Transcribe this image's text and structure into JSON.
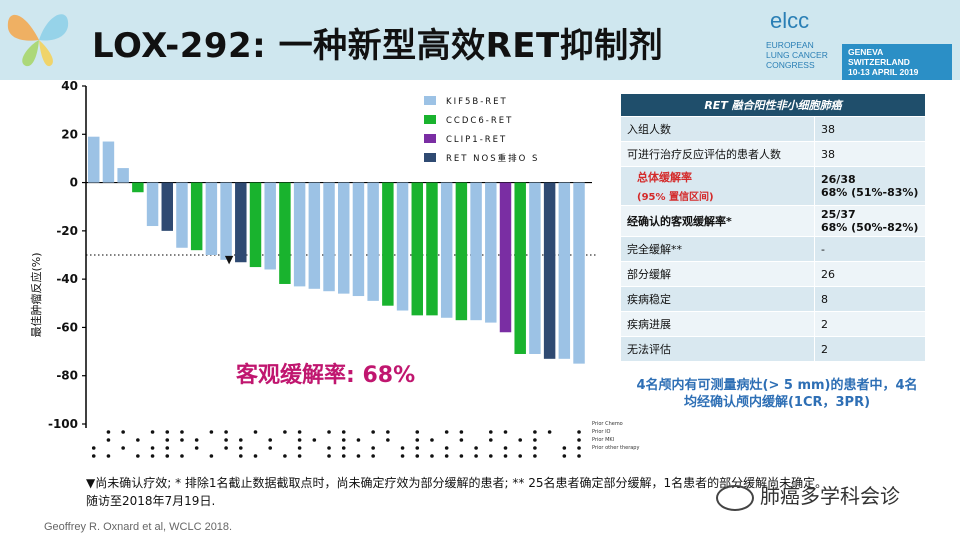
{
  "header": {
    "title": "LOX-292: 一种新型高效RET抑制剂",
    "logo": {
      "name": "elcc",
      "line1": "EUROPEAN",
      "line2": "LUNG CANCER",
      "line3": "CONGRESS",
      "badge_line1": "GENEVA SWITZERLAND",
      "badge_line2": "10-13 APRIL 2019"
    }
  },
  "chart_data": {
    "type": "bar",
    "ylabel": "最佳肿瘤反应(%)",
    "ylim": [
      -100,
      40
    ],
    "yticks": [
      "40",
      "20",
      "0",
      "-20",
      "-40",
      "-60",
      "-80",
      "-100"
    ],
    "threshold": -30,
    "legend": [
      "KIF5B-RET",
      "CCDC6-RET",
      "CLIP1-RET",
      "RET NOS重排O S"
    ],
    "colors": {
      "KIF5B-RET": "#9cc2e5",
      "CCDC6-RET": "#19b32e",
      "CLIP1-RET": "#7a2ea3",
      "RET NOS重排O S": "#2f4a72"
    },
    "values": [
      19,
      17,
      6,
      -4,
      -18,
      -20,
      -27,
      -28,
      -30,
      -32,
      -33,
      -35,
      -36,
      -42,
      -43,
      -44,
      -45,
      -46,
      -47,
      -49,
      -51,
      -53,
      -55,
      -55,
      -56,
      -57,
      -57,
      -58,
      -62,
      -71,
      -71,
      -73,
      -73,
      -75
    ],
    "series": [
      "KIF5B-RET",
      "KIF5B-RET",
      "KIF5B-RET",
      "CCDC6-RET",
      "KIF5B-RET",
      "RET NOS重排O S",
      "KIF5B-RET",
      "CCDC6-RET",
      "KIF5B-RET",
      "KIF5B-RET",
      "RET NOS重排O S",
      "CCDC6-RET",
      "KIF5B-RET",
      "CCDC6-RET",
      "KIF5B-RET",
      "KIF5B-RET",
      "KIF5B-RET",
      "KIF5B-RET",
      "KIF5B-RET",
      "KIF5B-RET",
      "CCDC6-RET",
      "KIF5B-RET",
      "CCDC6-RET",
      "CCDC6-RET",
      "KIF5B-RET",
      "CCDC6-RET",
      "KIF5B-RET",
      "KIF5B-RET",
      "CLIP1-RET",
      "CCDC6-RET",
      "KIF5B-RET",
      "RET NOS重排O S",
      "KIF5B-RET",
      "KIF5B-RET"
    ],
    "annotation": "客观缓解率: 68%",
    "marker": "▼",
    "prior_therapy_labels": [
      "Prior Chemo",
      "Prior IO",
      "Prior MKI",
      "Prior other therapy"
    ],
    "prior_therapy": [
      [
        0,
        1,
        1,
        0,
        1,
        1,
        1,
        0,
        1,
        1,
        0,
        1,
        0,
        1,
        1,
        0,
        1,
        1,
        0,
        1,
        1,
        0,
        1,
        0,
        1,
        1,
        0,
        1,
        1,
        0,
        1,
        1,
        0,
        1
      ],
      [
        0,
        1,
        0,
        1,
        0,
        1,
        1,
        1,
        0,
        1,
        1,
        0,
        1,
        0,
        1,
        1,
        0,
        1,
        1,
        0,
        1,
        0,
        1,
        1,
        0,
        1,
        0,
        1,
        0,
        1,
        1,
        0,
        0,
        1
      ],
      [
        1,
        0,
        1,
        0,
        1,
        1,
        0,
        1,
        0,
        1,
        1,
        0,
        1,
        0,
        1,
        0,
        1,
        1,
        0,
        1,
        0,
        1,
        1,
        0,
        1,
        0,
        1,
        0,
        1,
        0,
        1,
        0,
        1,
        1
      ],
      [
        1,
        1,
        0,
        1,
        1,
        1,
        1,
        0,
        1,
        0,
        1,
        1,
        0,
        1,
        1,
        0,
        1,
        1,
        1,
        1,
        0,
        1,
        1,
        1,
        1,
        1,
        1,
        1,
        1,
        1,
        1,
        0,
        1,
        1
      ]
    ]
  },
  "table": {
    "header": "RET 融合阳性非小细胞肺癌",
    "rows": [
      {
        "label": "入组人数",
        "value": "38"
      },
      {
        "label": "可进行治疗反应评估的患者人数",
        "value": "38"
      },
      {
        "label": "总体缓解率",
        "sublabel": "(95% 置信区间)",
        "value": "26/38",
        "value2": "68% (51%-83%)"
      },
      {
        "label": "经确认的客观缓解率*",
        "value": "25/37",
        "value2": "68% (50%-82%)"
      },
      {
        "label": "完全缓解**",
        "value": "-"
      },
      {
        "label": "部分缓解",
        "value": "26"
      },
      {
        "label": "疾病稳定",
        "value": "8"
      },
      {
        "label": "疾病进展",
        "value": "2"
      },
      {
        "label": "无法评估",
        "value": "2"
      }
    ]
  },
  "note": {
    "line1": "4名颅内有可测量病灶(> 5 mm)的患者中，4名",
    "line2": "均经确认颅内缓解(1CR，3PR)"
  },
  "footnote": {
    "line1": "▼尚未确认疗效; * 排除1名截止数据截取点时，尚未确定疗效为部分缓解的患者;  ** 25名患者确定部分缓解，1名患者的部分缓解尚未确定。",
    "line2": "随访至2018年7月19日."
  },
  "citation": "Geoffrey R. Oxnard et al, WCLC 2018.",
  "watermark": "肺癌多学科会诊"
}
